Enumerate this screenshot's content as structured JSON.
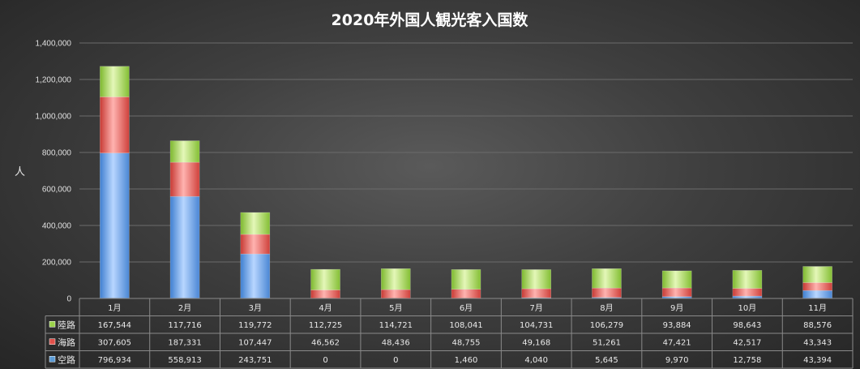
{
  "chart_data": {
    "type": "bar",
    "stacked": true,
    "title": "2020年外国人観光客入国数",
    "ylabel": "人",
    "ylim": [
      0,
      1400000
    ],
    "yticks": [
      "0",
      "200,000",
      "400,000",
      "600,000",
      "800,000",
      "1,000,000",
      "1,200,000",
      "1,400,000"
    ],
    "grid": true,
    "legend": "data-table",
    "categories": [
      "1月",
      "2月",
      "3月",
      "4月",
      "5月",
      "6月",
      "7月",
      "8月",
      "9月",
      "10月",
      "11月"
    ],
    "series": [
      {
        "name": "空路",
        "color": "#5b9bd5",
        "values": [
          796934,
          558913,
          243751,
          0,
          0,
          1460,
          4040,
          5645,
          9970,
          12758,
          43394
        ],
        "labels": [
          "796,934",
          "558,913",
          "243,751",
          "0",
          "0",
          "1,460",
          "4,040",
          "5,645",
          "9,970",
          "12,758",
          "43,394"
        ]
      },
      {
        "name": "海路",
        "color": "#e0504a",
        "values": [
          307605,
          187331,
          107447,
          46562,
          48436,
          48755,
          49168,
          51261,
          47421,
          42517,
          43343
        ],
        "labels": [
          "307,605",
          "187,331",
          "107,447",
          "46,562",
          "48,436",
          "48,755",
          "49,168",
          "51,261",
          "47,421",
          "42,517",
          "43,343"
        ]
      },
      {
        "name": "陸路",
        "color": "#9bd24a",
        "values": [
          167544,
          117716,
          119772,
          112725,
          114721,
          108041,
          104731,
          106279,
          93884,
          98643,
          88576
        ],
        "labels": [
          "167,544",
          "117,716",
          "119,772",
          "112,725",
          "114,721",
          "108,041",
          "104,731",
          "106,279",
          "93,884",
          "98,643",
          "88,576"
        ]
      }
    ]
  }
}
